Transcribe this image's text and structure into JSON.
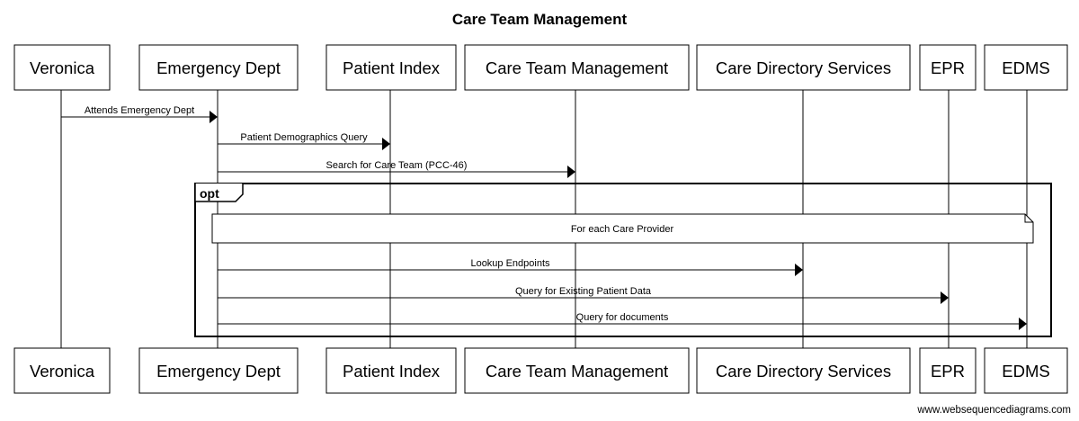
{
  "title": "Care Team Management",
  "participants": [
    {
      "id": "veronica",
      "label": "Veronica"
    },
    {
      "id": "ed",
      "label": "Emergency Dept"
    },
    {
      "id": "pi",
      "label": "Patient Index"
    },
    {
      "id": "ctm",
      "label": "Care Team Management"
    },
    {
      "id": "cds",
      "label": "Care Directory Services"
    },
    {
      "id": "epr",
      "label": "EPR"
    },
    {
      "id": "edms",
      "label": "EDMS"
    }
  ],
  "messages": [
    {
      "from": "veronica",
      "to": "ed",
      "label": "Attends Emergency Dept"
    },
    {
      "from": "ed",
      "to": "pi",
      "label": "Patient Demographics Query"
    },
    {
      "from": "ed",
      "to": "ctm",
      "label": "Search for Care Team (PCC-46)"
    },
    {
      "from": "ed",
      "to": "cds",
      "label": "Lookup Endpoints"
    },
    {
      "from": "ed",
      "to": "epr",
      "label": "Query for Existing Patient Data"
    },
    {
      "from": "ed",
      "to": "edms",
      "label": "Query for documents"
    }
  ],
  "fragment": {
    "label": "opt"
  },
  "note": {
    "text": "For each Care Provider"
  },
  "watermark": "www.websequencediagrams.com"
}
